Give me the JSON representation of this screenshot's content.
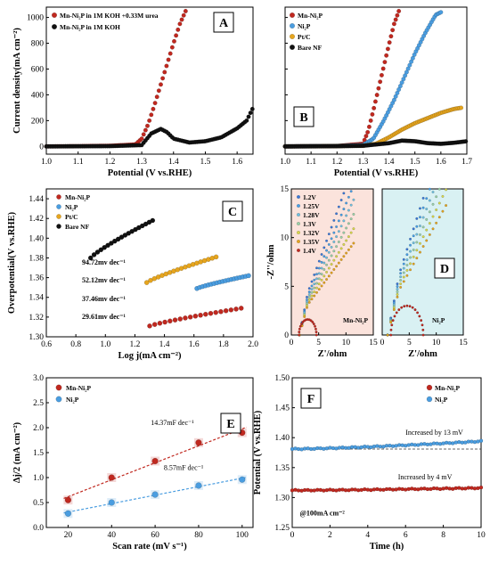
{
  "chart_data": [
    {
      "panel": "A",
      "type": "line",
      "xlabel": "Potential (V vs.RHE)",
      "ylabel": "Current density(mA cm⁻²)",
      "xlim": [
        1.0,
        1.65
      ],
      "ylim": [
        -60,
        1080
      ],
      "xticks": [
        "1.0",
        "1.1",
        "1.2",
        "1.3",
        "1.4",
        "1.5",
        "1.6"
      ],
      "yticks": [
        "0",
        "200",
        "400",
        "600",
        "800",
        "1000"
      ],
      "series": [
        {
          "name": "Mn-Ni₂P in 1M KOH +0.33M urea",
          "color": "#c0281f",
          "x": [
            1.0,
            1.1,
            1.2,
            1.28,
            1.3,
            1.32,
            1.34,
            1.36,
            1.38,
            1.4,
            1.42,
            1.44
          ],
          "y": [
            0,
            2,
            5,
            15,
            60,
            170,
            320,
            480,
            640,
            800,
            950,
            1060
          ]
        },
        {
          "name": "Mn-Ni₂P in 1M KOH",
          "color": "#111111",
          "x": [
            1.0,
            1.1,
            1.2,
            1.3,
            1.33,
            1.36,
            1.38,
            1.4,
            1.45,
            1.5,
            1.55,
            1.6,
            1.63,
            1.65
          ],
          "y": [
            0,
            1,
            2,
            10,
            100,
            135,
            110,
            60,
            30,
            40,
            70,
            140,
            200,
            300
          ]
        }
      ],
      "legend": "top-left"
    },
    {
      "panel": "B",
      "type": "line",
      "xlabel": "Potential (V vs.RHE)",
      "ylabel": "",
      "xlim": [
        1.0,
        1.7
      ],
      "ylim": [
        -60,
        1080
      ],
      "xticks": [
        "1.0",
        "1.1",
        "1.2",
        "1.3",
        "1.4",
        "1.5",
        "1.6",
        "1.7"
      ],
      "series": [
        {
          "name": "Mn-Ni₂P",
          "color": "#c0281f",
          "x": [
            1.0,
            1.2,
            1.3,
            1.32,
            1.34,
            1.36,
            1.38,
            1.4,
            1.42,
            1.44
          ],
          "y": [
            0,
            3,
            20,
            120,
            280,
            450,
            620,
            790,
            950,
            1060
          ]
        },
        {
          "name": "Ni₂P",
          "color": "#4a9de0",
          "x": [
            1.0,
            1.2,
            1.3,
            1.34,
            1.38,
            1.42,
            1.46,
            1.5,
            1.54,
            1.58,
            1.6
          ],
          "y": [
            0,
            3,
            10,
            60,
            200,
            360,
            540,
            720,
            880,
            1020,
            1040
          ]
        },
        {
          "name": "Pt/C",
          "color": "#e6a51e",
          "x": [
            1.0,
            1.2,
            1.3,
            1.35,
            1.4,
            1.45,
            1.5,
            1.55,
            1.6,
            1.65,
            1.68
          ],
          "y": [
            0,
            2,
            5,
            20,
            70,
            130,
            180,
            220,
            260,
            290,
            300
          ]
        },
        {
          "name": "Bare NF",
          "color": "#111111",
          "x": [
            1.0,
            1.2,
            1.3,
            1.4,
            1.45,
            1.5,
            1.55,
            1.6,
            1.65,
            1.7
          ],
          "y": [
            0,
            2,
            5,
            25,
            45,
            40,
            25,
            20,
            28,
            40
          ]
        }
      ],
      "legend": "top-left"
    },
    {
      "panel": "C",
      "type": "scatter",
      "xlabel": "Log j(mA cm⁻²)",
      "ylabel": "Overpotential(V vs.RHE)",
      "xlim": [
        0.6,
        2.0
      ],
      "ylim": [
        1.3,
        1.45
      ],
      "xticks": [
        "0.6",
        "0.8",
        "1.0",
        "1.2",
        "1.4",
        "1.6",
        "1.8",
        "2.0"
      ],
      "yticks": [
        "1.30",
        "1.32",
        "1.34",
        "1.36",
        "1.38",
        "1.40",
        "1.42",
        "1.44"
      ],
      "series": [
        {
          "name": "Mn-Ni₂P",
          "color": "#c0281f",
          "x0": 1.3,
          "x1": 1.92,
          "y0": 1.311,
          "y1": 1.329
        },
        {
          "name": "Ni₂P",
          "color": "#4a9de0",
          "x0": 1.62,
          "x1": 1.97,
          "y0": 1.349,
          "y1": 1.362
        },
        {
          "name": "Pt/C",
          "color": "#e6a51e",
          "x0": 1.28,
          "x1": 1.75,
          "y0": 1.355,
          "y1": 1.381
        },
        {
          "name": "Bare NF",
          "color": "#111111",
          "x0": 0.9,
          "x1": 1.32,
          "y0": 1.38,
          "y1": 1.418
        }
      ],
      "annotations": [
        "94.72mv dec⁻¹",
        "52.12mv dec⁻¹",
        "37.46mv dec⁻¹",
        "29.61mv dec⁻¹"
      ],
      "legend": "top-left"
    },
    {
      "panel": "D",
      "type": "scatter",
      "xlabel": "Z'/ohm",
      "ylabel": "-Z''/ohm",
      "xlim": [
        0,
        15
      ],
      "ylim": [
        0,
        15
      ],
      "xticks": [
        "0",
        "5",
        "10",
        "15"
      ],
      "yticks": [
        "0",
        "5",
        "10",
        "15"
      ],
      "legend_entries": [
        {
          "name": "1.2V",
          "color": "#3a78d8"
        },
        {
          "name": "1.25V",
          "color": "#48a0e8"
        },
        {
          "name": "1.28V",
          "color": "#6fc0e0"
        },
        {
          "name": "1.3V",
          "color": "#9ad0a8"
        },
        {
          "name": "1.32V",
          "color": "#d8d84a"
        },
        {
          "name": "1.35V",
          "color": "#e6a51e"
        },
        {
          "name": "1.4V",
          "color": "#c0281f"
        }
      ],
      "left_label": "Mn-Ni₂P",
      "right_label": "Ni₂P"
    },
    {
      "panel": "E",
      "type": "scatter",
      "xlabel": "Scan rate (mV s⁻¹)",
      "ylabel": "Δj/2 (mA cm⁻²)",
      "xlim": [
        10,
        105
      ],
      "ylim": [
        0.0,
        3.0
      ],
      "xticks": [
        "20",
        "40",
        "60",
        "80",
        "100"
      ],
      "yticks": [
        "0.0",
        "0.5",
        "1.0",
        "1.5",
        "2.0",
        "2.5",
        "3.0"
      ],
      "x": [
        20,
        40,
        60,
        80,
        100
      ],
      "series": [
        {
          "name": "Mn-Ni₂P",
          "color": "#c0281f",
          "values": [
            0.55,
            1.0,
            1.33,
            1.7,
            1.9
          ],
          "fit": "14.37mF dec⁻¹"
        },
        {
          "name": "Ni₂P",
          "color": "#4a9de0",
          "values": [
            0.28,
            0.5,
            0.66,
            0.84,
            0.96
          ],
          "fit": "8.57mF dec⁻¹"
        }
      ],
      "legend": "top-left"
    },
    {
      "panel": "F",
      "type": "line",
      "xlabel": "Time (h)",
      "ylabel": "Potential (V vs.RHE)",
      "xlim": [
        0,
        10
      ],
      "ylim": [
        1.25,
        1.5
      ],
      "xticks": [
        "0",
        "2",
        "4",
        "6",
        "8",
        "10"
      ],
      "yticks": [
        "1.25",
        "1.30",
        "1.35",
        "1.40",
        "1.45",
        "1.50"
      ],
      "series": [
        {
          "name": "Mn-Ni₂P",
          "color": "#c0281f",
          "start": 1.312,
          "end": 1.316
        },
        {
          "name": "Ni₂P",
          "color": "#4a9de0",
          "start": 1.381,
          "end": 1.394
        }
      ],
      "annotations": [
        "Increased by 13 mV",
        "Increased by 4 mV",
        "@100mA cm⁻²"
      ],
      "legend": "top-right"
    }
  ]
}
